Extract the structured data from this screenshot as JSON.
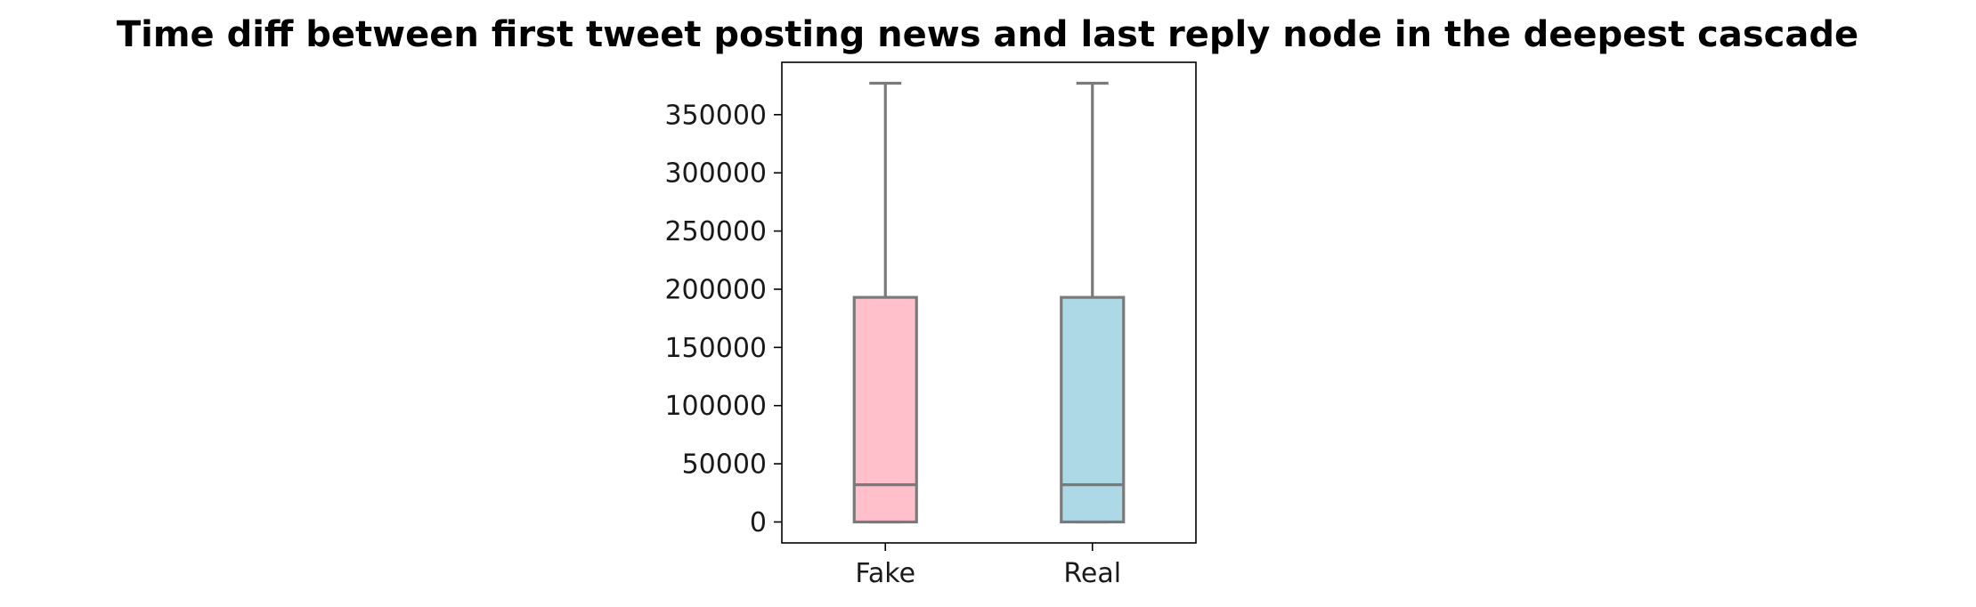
{
  "chart_data": {
    "type": "box",
    "title": "Time diff between first tweet posting news and last reply node in the deepest cascade",
    "xlabel": "",
    "ylabel": "",
    "categories": [
      "Fake",
      "Real"
    ],
    "ylim": [
      -18000,
      395000
    ],
    "yticks": [
      0,
      50000,
      100000,
      150000,
      200000,
      250000,
      300000,
      350000
    ],
    "ytick_labels": [
      "0",
      "50000",
      "100000",
      "150000",
      "200000",
      "250000",
      "300000",
      "350000"
    ],
    "grid": false,
    "line_color": "#7a7a7a",
    "boxes": [
      {
        "category": "Fake",
        "min": 0,
        "q1": 0,
        "median": 32000,
        "q3": 193000,
        "max": 377000,
        "color": "#ffc0cb"
      },
      {
        "category": "Real",
        "min": 0,
        "q1": 0,
        "median": 32000,
        "q3": 193000,
        "max": 377000,
        "color": "#add8e6"
      }
    ]
  }
}
